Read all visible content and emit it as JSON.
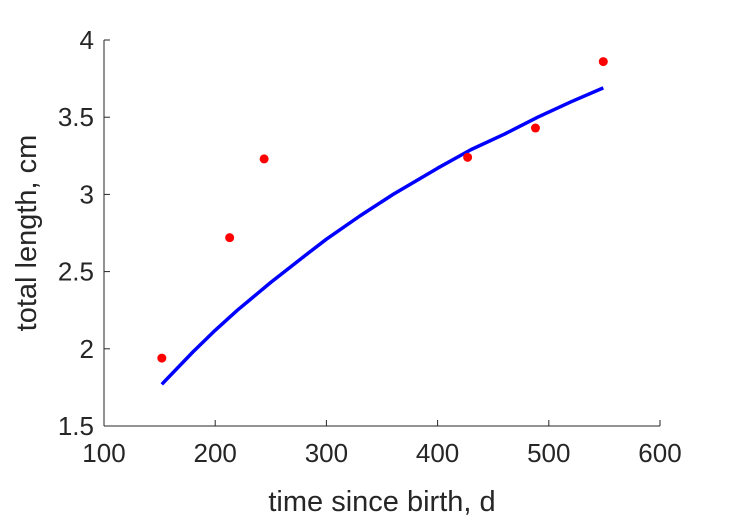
{
  "chart_data": {
    "type": "scatter",
    "xlabel": "time since birth, d",
    "ylabel": "total length, cm",
    "xlim": [
      100,
      600
    ],
    "ylim": [
      1.5,
      4
    ],
    "xticks": [
      100,
      200,
      300,
      400,
      500,
      600
    ],
    "yticks": [
      1.5,
      2,
      2.5,
      3,
      3.5,
      4
    ],
    "xtick_labels": [
      "100",
      "200",
      "300",
      "400",
      "500",
      "600"
    ],
    "ytick_labels": [
      "1.5",
      "2",
      "2.5",
      "3",
      "3.5",
      "4"
    ],
    "grid": false,
    "box": "left-bottom-axes",
    "series": [
      {
        "kind": "points",
        "color": "#ff0000",
        "x": [
          152,
          213,
          244,
          427,
          488,
          549
        ],
        "y": [
          1.94,
          2.72,
          3.23,
          3.24,
          3.43,
          3.86
        ]
      },
      {
        "kind": "line",
        "color": "#0000ff",
        "x": [
          152,
          180,
          200,
          220,
          250,
          280,
          300,
          330,
          360,
          400,
          430,
          460,
          490,
          520,
          549
        ],
        "y": [
          1.77,
          1.98,
          2.12,
          2.25,
          2.43,
          2.6,
          2.71,
          2.86,
          3.0,
          3.17,
          3.29,
          3.39,
          3.5,
          3.6,
          3.69
        ]
      }
    ]
  }
}
